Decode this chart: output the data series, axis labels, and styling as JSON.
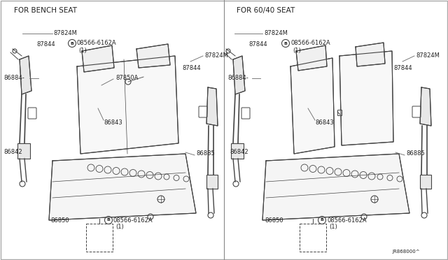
{
  "bg_color": "#ffffff",
  "line_color": "#444444",
  "text_color": "#222222",
  "title_left": "FOR BENCH SEAT",
  "title_right": "FOR 60/40 SEAT",
  "ref_code": "JR868000^",
  "font_size": 6.0,
  "title_font_size": 7.5
}
